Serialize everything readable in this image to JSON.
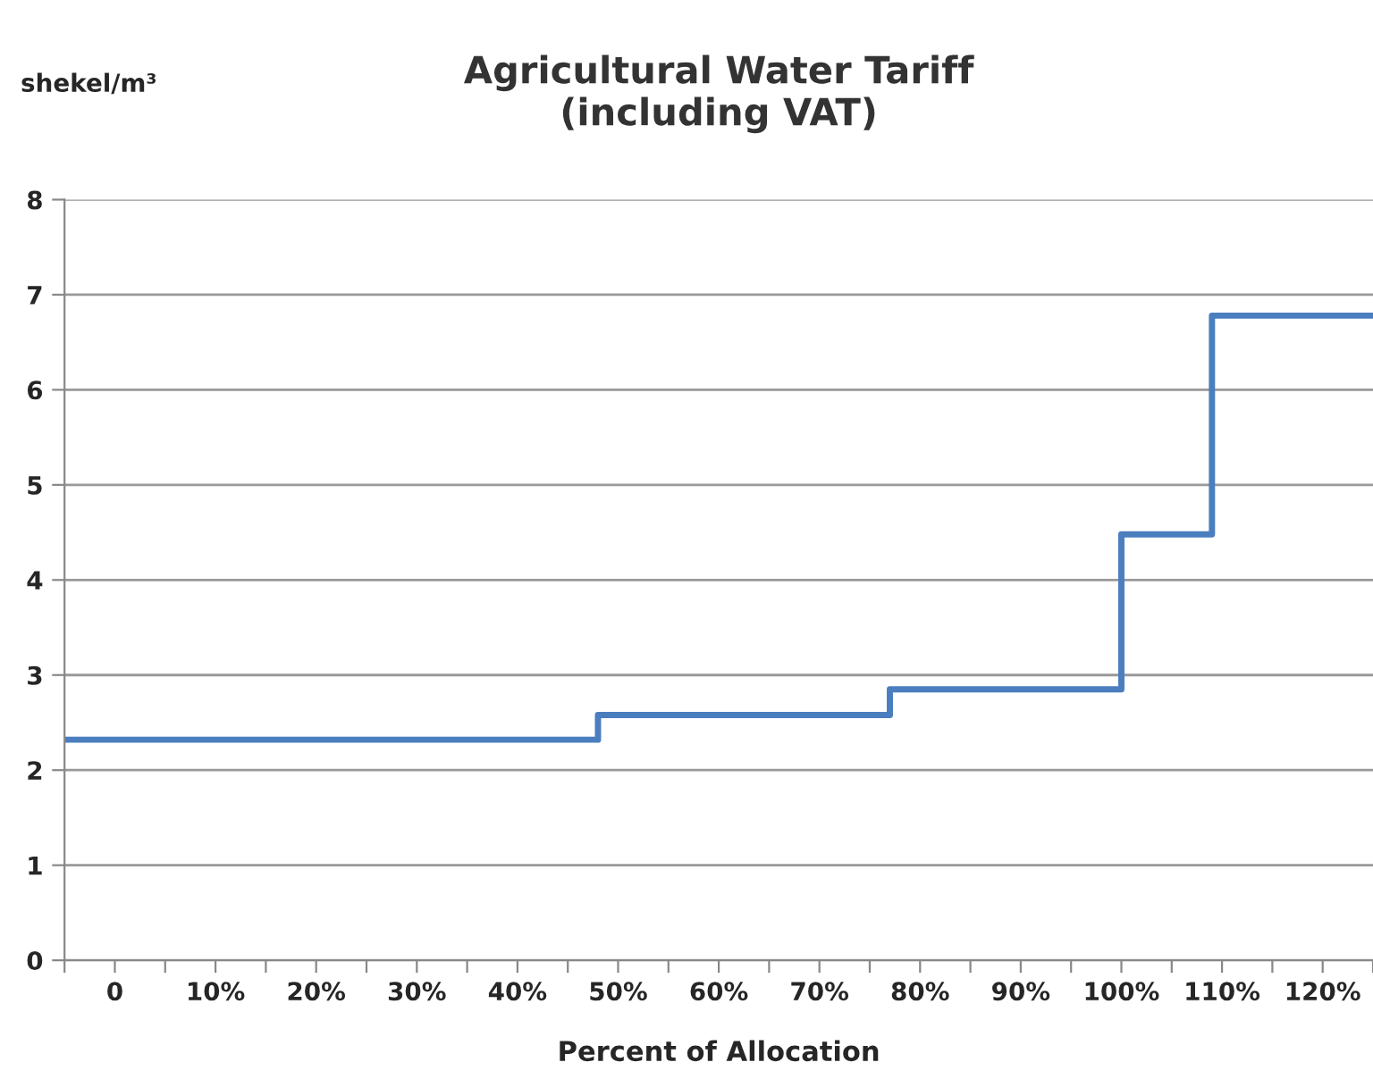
{
  "chart_data": {
    "type": "step",
    "title": "Agricultural Water Tariff\n(including VAT)",
    "ylabel": "shekel/m³",
    "xlabel": "Percent of Allocation",
    "x": [
      -5,
      48,
      77,
      100,
      109,
      125
    ],
    "series": [
      {
        "color": "#4a7ebf",
        "values": [
          2.32,
          2.58,
          2.85,
          4.48,
          6.78,
          6.78
        ]
      }
    ],
    "xlim": [
      -5,
      125
    ],
    "xticks": [
      {
        "value": -5,
        "label": null
      },
      {
        "value": 0,
        "label": "0"
      },
      {
        "value": 5,
        "label": null
      },
      {
        "value": 10,
        "label": "10%"
      },
      {
        "value": 15,
        "label": null
      },
      {
        "value": 20,
        "label": "20%"
      },
      {
        "value": 25,
        "label": null
      },
      {
        "value": 30,
        "label": "30%"
      },
      {
        "value": 35,
        "label": null
      },
      {
        "value": 40,
        "label": "40%"
      },
      {
        "value": 45,
        "label": null
      },
      {
        "value": 50,
        "label": "50%"
      },
      {
        "value": 55,
        "label": null
      },
      {
        "value": 60,
        "label": "60%"
      },
      {
        "value": 65,
        "label": null
      },
      {
        "value": 70,
        "label": "70%"
      },
      {
        "value": 75,
        "label": null
      },
      {
        "value": 80,
        "label": "80%"
      },
      {
        "value": 85,
        "label": null
      },
      {
        "value": 90,
        "label": "90%"
      },
      {
        "value": 95,
        "label": null
      },
      {
        "value": 100,
        "label": "100%"
      },
      {
        "value": 105,
        "label": null
      },
      {
        "value": 110,
        "label": "110%"
      },
      {
        "value": 115,
        "label": null
      },
      {
        "value": 120,
        "label": "120%"
      },
      {
        "value": 125,
        "label": null
      }
    ],
    "ylim": [
      0,
      8
    ],
    "yticks": [
      0,
      1,
      2,
      3,
      4,
      5,
      6,
      7,
      8
    ],
    "grid": "y",
    "line_style": "solid",
    "marker": "none"
  }
}
